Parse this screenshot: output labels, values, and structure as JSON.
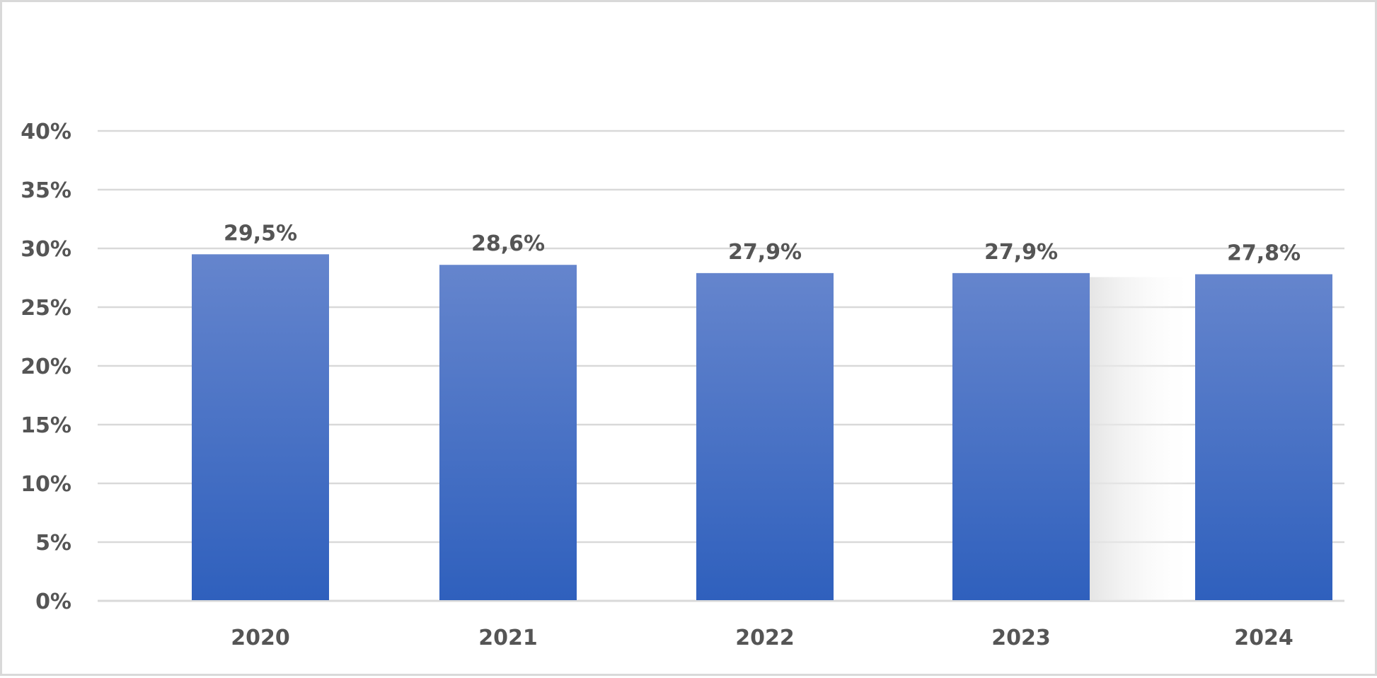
{
  "chart_data": {
    "type": "bar",
    "categories": [
      "2020",
      "2021",
      "2022",
      "2023",
      "2024"
    ],
    "values": [
      29.5,
      28.6,
      27.9,
      27.9,
      27.8
    ],
    "data_labels": [
      "29,5%",
      "28,6%",
      "27,9%",
      "27,9%",
      "27,8%"
    ],
    "y_tick_values": [
      0,
      5,
      10,
      15,
      20,
      25,
      30,
      35,
      40
    ],
    "y_tick_labels": [
      "0%",
      "5%",
      "10%",
      "15%",
      "20%",
      "25%",
      "30%",
      "35%",
      "40%"
    ],
    "ylim": [
      0,
      40
    ],
    "grid": true,
    "legend": "none",
    "colors": {
      "bar_top": "#6585cd",
      "bar_bottom": "#2f60bd",
      "grid": "#d9d9d9",
      "text": "#555555"
    }
  }
}
